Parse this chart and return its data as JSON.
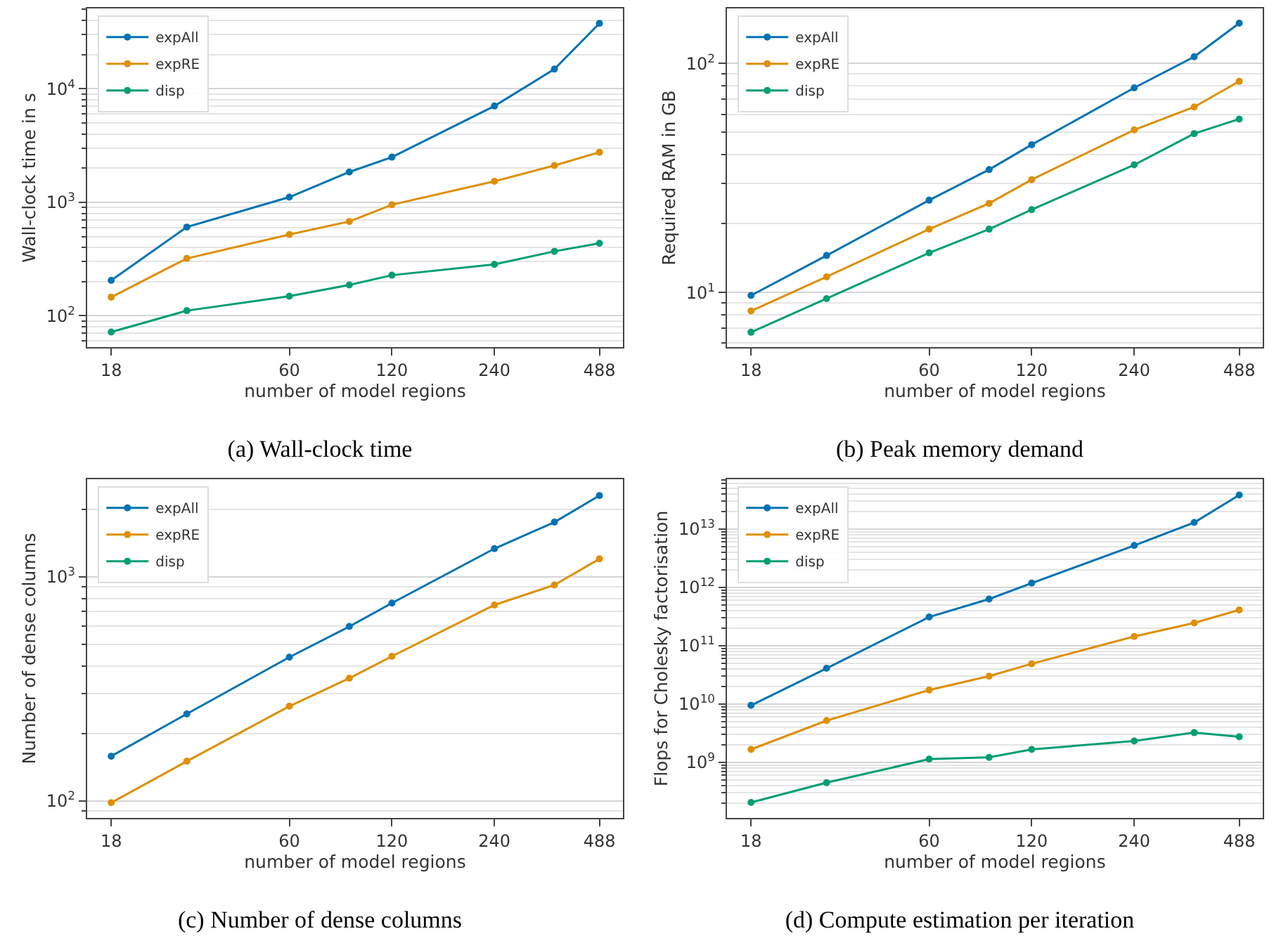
{
  "chart_data": [
    {
      "type": "line",
      "title": "(a) Wall-clock time",
      "xlabel": "number of model regions",
      "ylabel": "Wall-clock time in s",
      "log": "xy",
      "grid": "y",
      "legend": "top left",
      "marker": "circle",
      "x": [
        18,
        30,
        60,
        90,
        120,
        240,
        360,
        488
      ],
      "xlim": [
        15.3,
        572
      ],
      "xticks": [
        18,
        60,
        120,
        240,
        488
      ],
      "ylim": [
        53,
        51000
      ],
      "yticks": [
        {
          "value": 100,
          "label": "10$^{2}$"
        },
        {
          "value": 1000,
          "label": "10$^{3}$"
        },
        {
          "value": 10000,
          "label": "10$^{4}$"
        }
      ],
      "series": [
        {
          "name": "expAll",
          "color": "#0173b2",
          "values": [
            205,
            605,
            1110,
            1850,
            2500,
            7050,
            14900,
            37700
          ]
        },
        {
          "name": "expRE",
          "color": "#de8f05",
          "values": [
            146,
            320,
            520,
            678,
            952,
            1530,
            2110,
            2760
          ]
        },
        {
          "name": "disp",
          "color": "#029e73",
          "values": [
            72,
            111,
            149,
            187,
            228,
            284,
            370,
            435
          ]
        }
      ]
    },
    {
      "type": "line",
      "title": "(b) Peak memory demand",
      "xlabel": "number of model regions",
      "ylabel": "Required RAM in GB",
      "log": "xy",
      "grid": "y",
      "legend": "top left",
      "marker": "circle",
      "x": [
        18,
        30,
        60,
        90,
        120,
        240,
        360,
        488
      ],
      "xlim": [
        15.3,
        572
      ],
      "xticks": [
        18,
        60,
        120,
        240,
        488
      ],
      "ylim": [
        5.77,
        174
      ],
      "yticks": [
        {
          "value": 10,
          "label": "10$^{1}$"
        },
        {
          "value": 100,
          "label": "10$^{2}$"
        }
      ],
      "series": [
        {
          "name": "expAll",
          "color": "#0173b2",
          "values": [
            9.7,
            14.5,
            25.3,
            34.4,
            44.2,
            78.3,
            107,
            150
          ]
        },
        {
          "name": "expRE",
          "color": "#de8f05",
          "values": [
            8.3,
            11.7,
            18.9,
            24.5,
            31.1,
            51.3,
            64.6,
            83.6
          ]
        },
        {
          "name": "disp",
          "color": "#029e73",
          "values": [
            6.7,
            9.4,
            14.9,
            18.9,
            23.0,
            36.1,
            49.4,
            57.2
          ]
        }
      ]
    },
    {
      "type": "line",
      "title": "(c) Number of dense columns",
      "xlabel": "number of model regions",
      "ylabel": "Number of dense columns",
      "log": "xy",
      "grid": "y",
      "legend": "top left",
      "marker": "circle",
      "x": [
        18,
        30,
        60,
        90,
        120,
        240,
        360,
        488
      ],
      "xlim": [
        15.3,
        572
      ],
      "xticks": [
        18,
        60,
        120,
        240,
        488
      ],
      "ylim": [
        83.8,
        2720
      ],
      "yticks": [
        {
          "value": 100,
          "label": "10$^{2}$"
        },
        {
          "value": 1000,
          "label": "10$^{3}$"
        }
      ],
      "series": [
        {
          "name": "expAll",
          "color": "#0173b2",
          "values": [
            158,
            244,
            437,
            599,
            762,
            1333,
            1750,
            2300
          ]
        },
        {
          "name": "expRE",
          "color": "#de8f05",
          "values": [
            98,
            150,
            264,
            352,
            441,
            747,
            918,
            1200
          ]
        },
        {
          "name": "disp",
          "color": "#029e73",
          "values": [
            null,
            null,
            null,
            null,
            null,
            null,
            null,
            null
          ]
        }
      ]
    },
    {
      "type": "line",
      "title": "(d) Compute estimation per iteration",
      "xlabel": "number of model regions",
      "ylabel": "Flops for Cholesky factorisation",
      "log": "xy",
      "grid": "y",
      "legend": "top left",
      "marker": "circle",
      "x": [
        18,
        30,
        60,
        90,
        120,
        240,
        360,
        488
      ],
      "xlim": [
        15.3,
        572
      ],
      "xticks": [
        18,
        60,
        120,
        240,
        488
      ],
      "ylim": [
        112000000,
        71000000000000
      ],
      "yticks": [
        {
          "value": 1000000000,
          "label": "10$^{9}$"
        },
        {
          "value": 10000000000,
          "label": "10$^{10}$"
        },
        {
          "value": 100000000000,
          "label": "10$^{11}$"
        },
        {
          "value": 1000000000000,
          "label": "10$^{12}$"
        },
        {
          "value": 10000000000000,
          "label": "10$^{13}$"
        }
      ],
      "series": [
        {
          "name": "expAll",
          "color": "#0173b2",
          "values": [
            9500000000,
            41000000000,
            310000000000,
            630000000000,
            1180000000000,
            5200000000000,
            12900000000000,
            38000000000000
          ]
        },
        {
          "name": "expRE",
          "color": "#de8f05",
          "values": [
            1670000000,
            5200000000,
            17400000000,
            30000000000,
            49000000000,
            144000000000,
            245000000000,
            410000000000
          ]
        },
        {
          "name": "disp",
          "color": "#029e73",
          "values": [
            206000000,
            450000000,
            1140000000,
            1220000000,
            1670000000,
            2330000000,
            3240000000,
            2750000000
          ]
        }
      ]
    }
  ]
}
